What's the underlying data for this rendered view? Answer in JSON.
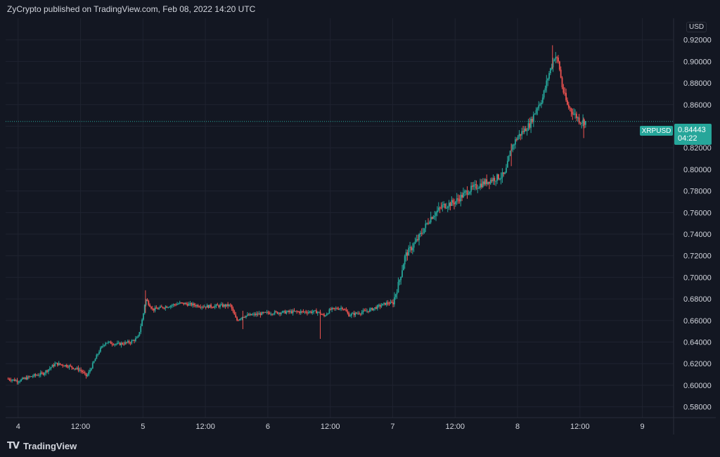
{
  "header": {
    "published_by": "ZyCrypto published on TradingView.com, Feb 08, 2022 14:20 UTC"
  },
  "footer": {
    "logo_glyph": "TV",
    "brand": "TradingView"
  },
  "price_scale": {
    "currency": "USD"
  },
  "symbol": {
    "name": "XRPUSD",
    "last_price": "0.84443",
    "countdown": "04:22"
  },
  "chart_data": {
    "type": "candlestick",
    "title": "",
    "xlabel": "",
    "ylabel": "",
    "ylim": [
      0.57,
      0.94
    ],
    "xlim": [
      -0.1,
      5.25
    ],
    "grid": true,
    "x_ticks": [
      {
        "label": "4",
        "x": 0.0
      },
      {
        "label": "12:00",
        "x": 0.5
      },
      {
        "label": "5",
        "x": 1.0
      },
      {
        "label": "12:00",
        "x": 1.5
      },
      {
        "label": "6",
        "x": 2.0
      },
      {
        "label": "12:00",
        "x": 2.5
      },
      {
        "label": "7",
        "x": 3.0
      },
      {
        "label": "12:00",
        "x": 3.5
      },
      {
        "label": "8",
        "x": 4.0
      },
      {
        "label": "12:00",
        "x": 4.5
      },
      {
        "label": "9",
        "x": 5.0
      }
    ],
    "y_ticks": [
      "0.58000",
      "0.60000",
      "0.62000",
      "0.64000",
      "0.66000",
      "0.68000",
      "0.70000",
      "0.72000",
      "0.74000",
      "0.76000",
      "0.78000",
      "0.80000",
      "0.82000",
      "0.84000",
      "0.86000",
      "0.88000",
      "0.90000",
      "0.92000"
    ],
    "last_price": 0.84443,
    "path": [
      [
        -0.08,
        0.606
      ],
      [
        0.0,
        0.604
      ],
      [
        0.1,
        0.608
      ],
      [
        0.2,
        0.611
      ],
      [
        0.3,
        0.62
      ],
      [
        0.4,
        0.618
      ],
      [
        0.5,
        0.614
      ],
      [
        0.55,
        0.608
      ],
      [
        0.6,
        0.62
      ],
      [
        0.65,
        0.632
      ],
      [
        0.7,
        0.64
      ],
      [
        0.8,
        0.638
      ],
      [
        0.9,
        0.64
      ],
      [
        0.96,
        0.644
      ],
      [
        1.0,
        0.664
      ],
      [
        1.02,
        0.68
      ],
      [
        1.08,
        0.67
      ],
      [
        1.15,
        0.672
      ],
      [
        1.3,
        0.676
      ],
      [
        1.5,
        0.673
      ],
      [
        1.7,
        0.674
      ],
      [
        1.75,
        0.66
      ],
      [
        1.8,
        0.664
      ],
      [
        2.0,
        0.667
      ],
      [
        2.2,
        0.668
      ],
      [
        2.4,
        0.668
      ],
      [
        2.45,
        0.664
      ],
      [
        2.5,
        0.67
      ],
      [
        2.6,
        0.672
      ],
      [
        2.65,
        0.665
      ],
      [
        2.8,
        0.669
      ],
      [
        2.95,
        0.676
      ],
      [
        3.0,
        0.676
      ],
      [
        3.05,
        0.695
      ],
      [
        3.1,
        0.72
      ],
      [
        3.2,
        0.735
      ],
      [
        3.3,
        0.755
      ],
      [
        3.4,
        0.766
      ],
      [
        3.5,
        0.77
      ],
      [
        3.6,
        0.78
      ],
      [
        3.7,
        0.786
      ],
      [
        3.8,
        0.791
      ],
      [
        3.9,
        0.795
      ],
      [
        3.95,
        0.82
      ],
      [
        4.0,
        0.83
      ],
      [
        4.1,
        0.842
      ],
      [
        4.15,
        0.856
      ],
      [
        4.2,
        0.866
      ],
      [
        4.25,
        0.888
      ],
      [
        4.3,
        0.906
      ],
      [
        4.33,
        0.898
      ],
      [
        4.36,
        0.875
      ],
      [
        4.4,
        0.859
      ],
      [
        4.45,
        0.852
      ],
      [
        4.5,
        0.845
      ],
      [
        4.55,
        0.844
      ]
    ],
    "spikes": [
      {
        "x": 1.02,
        "high": 0.688,
        "low": 0.667
      },
      {
        "x": 1.8,
        "high": 0.669,
        "low": 0.652
      },
      {
        "x": 2.42,
        "high": 0.67,
        "low": 0.643
      },
      {
        "x": 3.95,
        "high": 0.824,
        "low": 0.803
      },
      {
        "x": 4.28,
        "high": 0.915,
        "low": 0.893
      },
      {
        "x": 4.53,
        "high": 0.848,
        "low": 0.829
      }
    ]
  },
  "colors": {
    "background": "#131722",
    "grid": "#1f2330",
    "up": "#26a69a",
    "down": "#ef5350",
    "text": "#d1d4dc"
  }
}
